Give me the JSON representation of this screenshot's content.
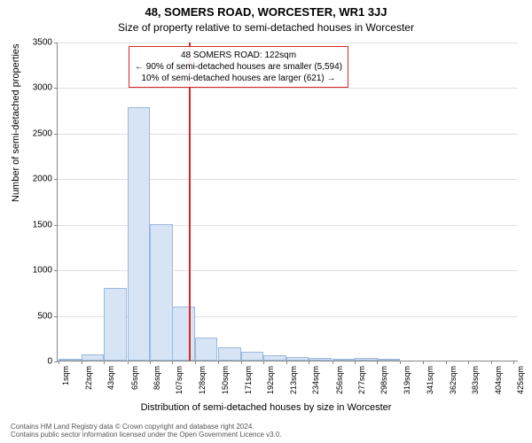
{
  "title_line_1": "48, SOMERS ROAD, WORCESTER, WR1 3JJ",
  "title_line_2": "Size of property relative to semi-detached houses in Worcester",
  "y_axis_label": "Number of semi-detached properties",
  "x_axis_label": "Distribution of semi-detached houses by size in Worcester",
  "chart": {
    "type": "histogram",
    "background_color": "#ffffff",
    "grid_color": "#e0e0e0",
    "axis_color": "#888888",
    "bar_color": "#d6e4f5",
    "bar_border_color": "#9cb8db",
    "marker_color": "#d62728",
    "xlim": [
      0,
      430
    ],
    "ylim": [
      0,
      3500
    ],
    "ytick_step": 500,
    "yticks": [
      0,
      500,
      1000,
      1500,
      2000,
      2500,
      3000,
      3500
    ],
    "xticks": [
      1,
      22,
      43,
      65,
      86,
      107,
      128,
      150,
      171,
      192,
      213,
      234,
      256,
      277,
      298,
      319,
      341,
      362,
      383,
      404,
      425
    ],
    "xtick_suffix": "sqm",
    "bin_width": 21.2,
    "bins": [
      {
        "start": 1,
        "count": 5
      },
      {
        "start": 22,
        "count": 70
      },
      {
        "start": 43,
        "count": 800
      },
      {
        "start": 65,
        "count": 2780
      },
      {
        "start": 86,
        "count": 1500
      },
      {
        "start": 107,
        "count": 590
      },
      {
        "start": 128,
        "count": 250
      },
      {
        "start": 150,
        "count": 150
      },
      {
        "start": 171,
        "count": 100
      },
      {
        "start": 192,
        "count": 55
      },
      {
        "start": 213,
        "count": 35
      },
      {
        "start": 234,
        "count": 25
      },
      {
        "start": 256,
        "count": 10
      },
      {
        "start": 277,
        "count": 30
      },
      {
        "start": 298,
        "count": 5
      },
      {
        "start": 319,
        "count": 0
      },
      {
        "start": 341,
        "count": 0
      },
      {
        "start": 362,
        "count": 0
      },
      {
        "start": 383,
        "count": 0
      },
      {
        "start": 404,
        "count": 0
      }
    ],
    "marker_value": 122,
    "annotation": {
      "line1": "48 SOMERS ROAD: 122sqm",
      "line2": "← 90% of semi-detached houses are smaller (5,594)",
      "line3": "10% of semi-detached houses are larger (621) →"
    }
  },
  "footer_line_1": "Contains HM Land Registry data © Crown copyright and database right 2024.",
  "footer_line_2": "Contains public sector information licensed under the Open Government Licence v3.0."
}
